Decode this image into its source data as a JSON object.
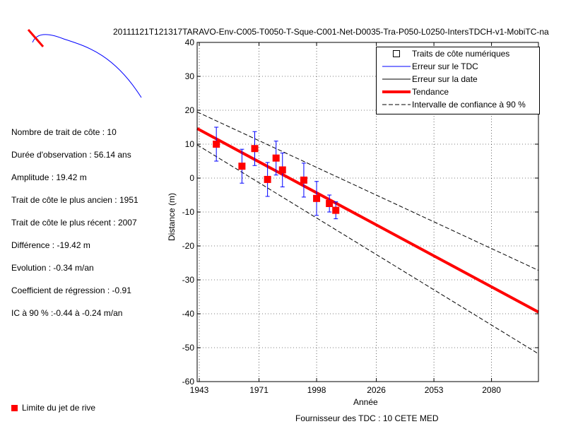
{
  "title": "20111121T121317TARAVO-Env-C005-T0050-T-Sque-C001-Net-D0035-Tra-P050-L0250-IntersTDCH-v1-MobiTC-na",
  "stats": [
    "Nombre de trait de côte : 10",
    "Durée d'observation : 56.14 ans",
    "Amplitude : 19.42 m",
    "Trait de côte le plus ancien : 1951",
    "Trait de côte le plus récent : 2007",
    "Différence : -19.42 m",
    "Evolution : -0.34 m/an",
    "Coefficient de régression : -0.91",
    "IC à 90 % :-0.44 à -0.24 m/an"
  ],
  "limite_label": "Limite du jet de rive",
  "footer": "Fournisseur des TDC : 10 CETE MED",
  "colors": {
    "data": "#ff0000",
    "tdc_error": "#0000ff",
    "trend": "#ff0000",
    "ci": "#000000",
    "inset_line": "#0000ff"
  },
  "chart_data": {
    "type": "scatter",
    "xlabel": "Année",
    "ylabel": "Distance (m)",
    "xlim": [
      1942,
      2102
    ],
    "ylim": [
      -60,
      40
    ],
    "xticks": [
      1943,
      1971,
      1998,
      2026,
      2053,
      2080
    ],
    "yticks": [
      40,
      30,
      20,
      10,
      0,
      -10,
      -20,
      -30,
      -40,
      -50,
      -60
    ],
    "grid": true,
    "legend": {
      "position": "top-right",
      "entries": [
        "Traits de côte numériques",
        "Erreur sur le TDC",
        "Erreur sur la date",
        "Tendance",
        "Intervalle de confiance à 90 %"
      ]
    },
    "points": [
      {
        "x": 1951,
        "y": 10.0,
        "err": 5
      },
      {
        "x": 1963,
        "y": 3.5,
        "err": 5
      },
      {
        "x": 1969,
        "y": 8.7,
        "err": 5
      },
      {
        "x": 1975,
        "y": -0.4,
        "err": 5
      },
      {
        "x": 1979,
        "y": 5.9,
        "err": 5
      },
      {
        "x": 1982,
        "y": 2.4,
        "err": 5
      },
      {
        "x": 1992,
        "y": -0.6,
        "err": 5
      },
      {
        "x": 1998,
        "y": -6.0,
        "err": 5
      },
      {
        "x": 2004,
        "y": -7.5,
        "err": 2.5
      },
      {
        "x": 2007,
        "y": -9.5,
        "err": 2.5
      }
    ],
    "trend": {
      "x": [
        1942,
        2102
      ],
      "y": [
        14.6,
        -39.5
      ]
    },
    "ci_upper": {
      "x": [
        1942,
        2102
      ],
      "y": [
        19.5,
        -27.2
      ]
    },
    "ci_lower": {
      "x": [
        1942,
        2102
      ],
      "y": [
        9.8,
        -51.8
      ]
    }
  }
}
